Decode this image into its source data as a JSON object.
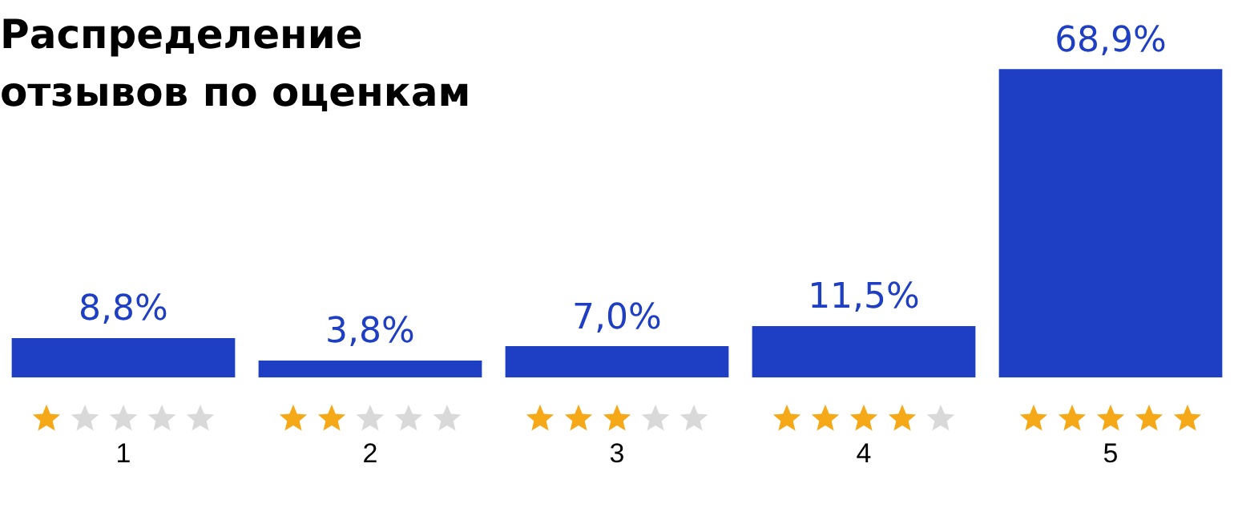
{
  "chart_data": {
    "type": "bar",
    "title": "Распределение отзывов по оценкам",
    "categories": [
      "1",
      "2",
      "3",
      "4",
      "5"
    ],
    "values": [
      8.8,
      3.8,
      7.0,
      11.5,
      68.9
    ],
    "value_labels": [
      "8,8%",
      "3,8%",
      "7,0%",
      "11,5%",
      "68,9%"
    ],
    "color": "#1e3ec4",
    "legend": false,
    "grid": false
  }
}
